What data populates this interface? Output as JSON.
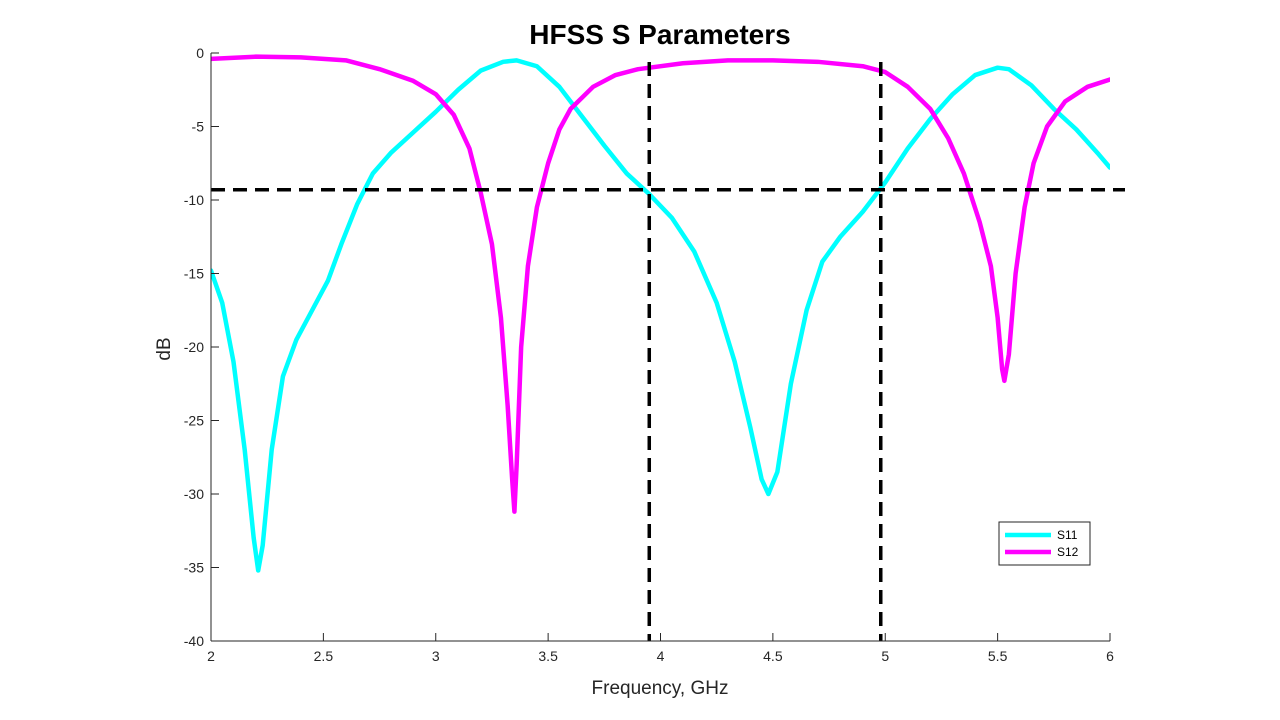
{
  "chart_data": {
    "type": "line",
    "title": "HFSS S Parameters",
    "xlabel": "Frequency, GHz",
    "ylabel": "dB",
    "xlim": [
      2,
      6
    ],
    "ylim": [
      -40,
      0
    ],
    "xticks": [
      "2",
      "2.5",
      "3",
      "3.5",
      "4",
      "4.5",
      "5",
      "5.5",
      "6"
    ],
    "yticks": [
      "0",
      "-5",
      "-10",
      "-15",
      "-20",
      "-25",
      "-30",
      "-35",
      "-40"
    ],
    "grid": false,
    "legend_position": "bottom-right",
    "series": [
      {
        "name": "S11",
        "color": "#00ffff",
        "points": [
          [
            2.0,
            -14.8
          ],
          [
            2.05,
            -17
          ],
          [
            2.1,
            -21
          ],
          [
            2.15,
            -27
          ],
          [
            2.19,
            -33
          ],
          [
            2.21,
            -35.2
          ],
          [
            2.23,
            -33.5
          ],
          [
            2.27,
            -27
          ],
          [
            2.32,
            -22
          ],
          [
            2.38,
            -19.5
          ],
          [
            2.45,
            -17.5
          ],
          [
            2.52,
            -15.5
          ],
          [
            2.58,
            -13
          ],
          [
            2.65,
            -10.3
          ],
          [
            2.72,
            -8.2
          ],
          [
            2.8,
            -6.8
          ],
          [
            2.9,
            -5.4
          ],
          [
            3.0,
            -4.0
          ],
          [
            3.1,
            -2.5
          ],
          [
            3.2,
            -1.2
          ],
          [
            3.3,
            -0.6
          ],
          [
            3.36,
            -0.5
          ],
          [
            3.45,
            -0.9
          ],
          [
            3.55,
            -2.3
          ],
          [
            3.65,
            -4.3
          ],
          [
            3.75,
            -6.3
          ],
          [
            3.85,
            -8.2
          ],
          [
            3.95,
            -9.6
          ],
          [
            4.05,
            -11.2
          ],
          [
            4.15,
            -13.5
          ],
          [
            4.25,
            -17
          ],
          [
            4.33,
            -21
          ],
          [
            4.4,
            -25.5
          ],
          [
            4.45,
            -29
          ],
          [
            4.48,
            -30
          ],
          [
            4.52,
            -28.5
          ],
          [
            4.58,
            -22.5
          ],
          [
            4.65,
            -17.5
          ],
          [
            4.72,
            -14.2
          ],
          [
            4.8,
            -12.5
          ],
          [
            4.9,
            -10.8
          ],
          [
            5.0,
            -8.8
          ],
          [
            5.1,
            -6.5
          ],
          [
            5.2,
            -4.5
          ],
          [
            5.3,
            -2.8
          ],
          [
            5.4,
            -1.5
          ],
          [
            5.5,
            -1.0
          ],
          [
            5.55,
            -1.1
          ],
          [
            5.65,
            -2.2
          ],
          [
            5.75,
            -3.8
          ],
          [
            5.85,
            -5.2
          ],
          [
            5.95,
            -6.9
          ],
          [
            6.0,
            -7.8
          ]
        ]
      },
      {
        "name": "S12",
        "color": "#ff00ff",
        "points": [
          [
            2.0,
            -0.4
          ],
          [
            2.2,
            -0.25
          ],
          [
            2.4,
            -0.3
          ],
          [
            2.6,
            -0.5
          ],
          [
            2.75,
            -1.1
          ],
          [
            2.9,
            -1.9
          ],
          [
            3.0,
            -2.8
          ],
          [
            3.08,
            -4.2
          ],
          [
            3.15,
            -6.5
          ],
          [
            3.2,
            -9.5
          ],
          [
            3.25,
            -13
          ],
          [
            3.29,
            -18
          ],
          [
            3.32,
            -24
          ],
          [
            3.34,
            -29
          ],
          [
            3.35,
            -31.2
          ],
          [
            3.36,
            -28
          ],
          [
            3.38,
            -20
          ],
          [
            3.41,
            -14.5
          ],
          [
            3.45,
            -10.5
          ],
          [
            3.5,
            -7.5
          ],
          [
            3.55,
            -5.2
          ],
          [
            3.6,
            -3.8
          ],
          [
            3.7,
            -2.3
          ],
          [
            3.8,
            -1.5
          ],
          [
            3.9,
            -1.1
          ],
          [
            4.1,
            -0.7
          ],
          [
            4.3,
            -0.5
          ],
          [
            4.5,
            -0.5
          ],
          [
            4.7,
            -0.6
          ],
          [
            4.9,
            -0.9
          ],
          [
            5.0,
            -1.3
          ],
          [
            5.1,
            -2.3
          ],
          [
            5.2,
            -3.8
          ],
          [
            5.28,
            -5.8
          ],
          [
            5.35,
            -8.2
          ],
          [
            5.42,
            -11.5
          ],
          [
            5.47,
            -14.5
          ],
          [
            5.5,
            -18
          ],
          [
            5.52,
            -21.5
          ],
          [
            5.53,
            -22.3
          ],
          [
            5.55,
            -20.5
          ],
          [
            5.58,
            -15
          ],
          [
            5.62,
            -10.5
          ],
          [
            5.66,
            -7.5
          ],
          [
            5.72,
            -5
          ],
          [
            5.8,
            -3.3
          ],
          [
            5.9,
            -2.3
          ],
          [
            6.0,
            -1.8
          ]
        ]
      }
    ],
    "reference_lines": [
      {
        "orientation": "horizontal",
        "value": -9.3
      },
      {
        "orientation": "vertical",
        "value": 3.95
      },
      {
        "orientation": "vertical",
        "value": 4.98
      }
    ]
  }
}
